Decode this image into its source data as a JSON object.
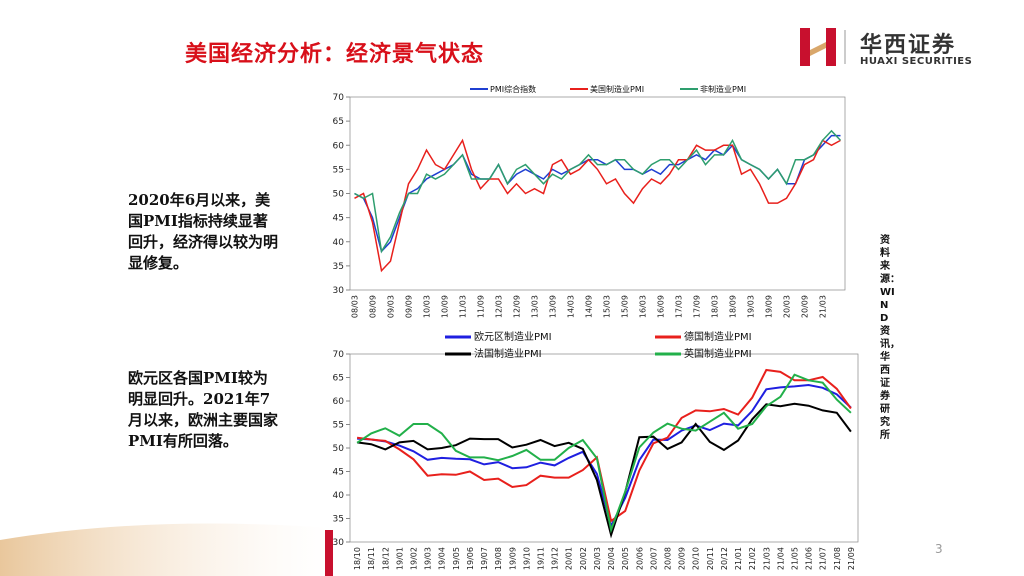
{
  "slide": {
    "title": "美国经济分析：经济景气状态",
    "logo_cn": "华西证券",
    "logo_en": "HUAXI SECURITIES",
    "note1": "2020年6月以来，美国PMI指标持续显著回升，经济得以较为明显修复。",
    "note2": "欧元区各国PMI较为明显回升。2021年7月以来，欧洲主要国家PMI有所回落。",
    "source": "资料来源：WIND资讯，华西证券研究所",
    "page": "3"
  },
  "chart_data": [
    {
      "type": "line",
      "legend": "top",
      "categories": [
        "08/03",
        null,
        "08/09",
        null,
        "09/03",
        null,
        "09/09",
        null,
        "10/03",
        null,
        "10/09",
        null,
        "11/03",
        null,
        "11/09",
        null,
        "12/03",
        null,
        "12/09",
        null,
        "13/03",
        null,
        "13/09",
        null,
        "14/03",
        null,
        "14/09",
        null,
        "15/03",
        null,
        "15/09",
        null,
        "16/03",
        null,
        "16/09",
        null,
        "17/03",
        null,
        "17/09",
        null,
        "18/03",
        null,
        "18/09",
        null,
        "19/03",
        null,
        "19/09",
        null,
        "20/03",
        null,
        "20/09",
        null,
        "21/03",
        null,
        null
      ],
      "ylim": [
        30,
        70
      ],
      "yticks": [
        30,
        35,
        40,
        45,
        50,
        55,
        60,
        65,
        70
      ],
      "series": [
        {
          "name": "PMI综合指数",
          "color": "#1f3fd1",
          "values": [
            50,
            49,
            45,
            38,
            40,
            45,
            50,
            51,
            53,
            54,
            55,
            56,
            58,
            54,
            53,
            53,
            56,
            52,
            54,
            55,
            54,
            53,
            55,
            54,
            55,
            56,
            57,
            57,
            56,
            57,
            55,
            55,
            54,
            55,
            54,
            56,
            56,
            57,
            58,
            57,
            59,
            58,
            60,
            57,
            56,
            55,
            53,
            55,
            52,
            52,
            57,
            58,
            60,
            62,
            62
          ]
        },
        {
          "name": "美国制造业PMI",
          "color": "#e8201c",
          "values": [
            49,
            50,
            44,
            34,
            36,
            44,
            52,
            55,
            59,
            56,
            55,
            58,
            61,
            55,
            51,
            53,
            53,
            50,
            52,
            50,
            51,
            50,
            56,
            57,
            54,
            55,
            57,
            55,
            52,
            53,
            50,
            48,
            51,
            53,
            52,
            54,
            57,
            57,
            60,
            59,
            59,
            60,
            60,
            54,
            55,
            52,
            48,
            48,
            49,
            52,
            56,
            57,
            61,
            60,
            61
          ]
        },
        {
          "name": "非制造业PMI",
          "color": "#2e9e6e",
          "values": [
            50,
            49,
            50,
            38,
            41,
            46,
            50,
            50,
            54,
            53,
            54,
            56,
            58,
            53,
            53,
            53,
            56,
            52,
            55,
            56,
            54,
            52,
            54,
            53,
            55,
            56,
            58,
            56,
            56,
            57,
            57,
            55,
            54,
            56,
            57,
            57,
            55,
            57,
            59,
            56,
            58,
            58,
            61,
            57,
            56,
            55,
            53,
            55,
            52,
            57,
            57,
            58,
            61,
            63,
            61
          ]
        }
      ]
    },
    {
      "type": "line",
      "legend": "top",
      "categories": [
        "18/10",
        "18/11",
        "18/12",
        "19/01",
        "19/02",
        "19/03",
        "19/04",
        "19/05",
        "19/06",
        "19/07",
        "19/08",
        "19/09",
        "19/10",
        "19/11",
        "19/12",
        "20/01",
        "20/02",
        "20/03",
        "20/04",
        "20/05",
        "20/06",
        "20/07",
        "20/08",
        "20/09",
        "20/10",
        "20/11",
        "20/12",
        "21/01",
        "21/02",
        "21/03",
        "21/04",
        "21/05",
        "21/06",
        "21/07",
        "21/08",
        "21/09"
      ],
      "ylim": [
        30,
        70
      ],
      "yticks": [
        30,
        35,
        40,
        45,
        50,
        55,
        60,
        65,
        70
      ],
      "series": [
        {
          "name": "欧元区制造业PMI",
          "color": "#1f1fe0",
          "values": [
            52,
            51.8,
            51.4,
            50.5,
            49.3,
            47.5,
            47.9,
            47.7,
            47.6,
            46.5,
            47,
            45.7,
            45.9,
            46.9,
            46.3,
            47.9,
            49.2,
            44.5,
            33.4,
            39.4,
            47.4,
            51.8,
            51.7,
            53.7,
            54.8,
            53.8,
            55.2,
            54.8,
            57.9,
            62.5,
            62.9,
            63.1,
            63.4,
            62.8,
            61.4,
            58.6
          ]
        },
        {
          "name": "德国制造业PMI",
          "color": "#e8201c",
          "values": [
            52.2,
            51.8,
            51.5,
            49.7,
            47.6,
            44.1,
            44.4,
            44.3,
            45,
            43.2,
            43.5,
            41.7,
            42.1,
            44.1,
            43.7,
            43.7,
            45.3,
            48,
            34.5,
            36.6,
            45.2,
            51,
            52.2,
            56.4,
            58,
            57.8,
            58.3,
            57.1,
            60.7,
            66.6,
            66.2,
            64.4,
            64.4,
            65.1,
            62.6,
            58.4
          ]
        },
        {
          "name": "法国制造业PMI",
          "color": "#000000",
          "values": [
            51.2,
            50.8,
            49.7,
            51.2,
            51.5,
            49.7,
            50,
            50.6,
            52,
            51.9,
            51.9,
            50.1,
            50.7,
            51.7,
            50.4,
            51.1,
            49.8,
            43.2,
            31.5,
            40.6,
            52.3,
            52.4,
            49.8,
            51.2,
            55.1,
            51.3,
            49.6,
            51.6,
            56.1,
            59.3,
            58.9,
            59.4,
            59,
            58,
            57.5,
            53.5
          ]
        },
        {
          "name": "英国制造业PMI",
          "color": "#22b04a",
          "values": [
            51.1,
            53.1,
            54.2,
            52.6,
            55.1,
            55.1,
            53.1,
            49.4,
            48,
            48,
            47.4,
            48.3,
            49.6,
            47.5,
            47.5,
            50,
            51.7,
            47.8,
            32.6,
            40.7,
            50.1,
            53.3,
            55.2,
            54.1,
            53.7,
            55.6,
            57.5,
            54.1,
            55.1,
            58.9,
            60.9,
            65.6,
            64.4,
            63.9,
            60.3,
            57.5
          ]
        }
      ]
    }
  ]
}
